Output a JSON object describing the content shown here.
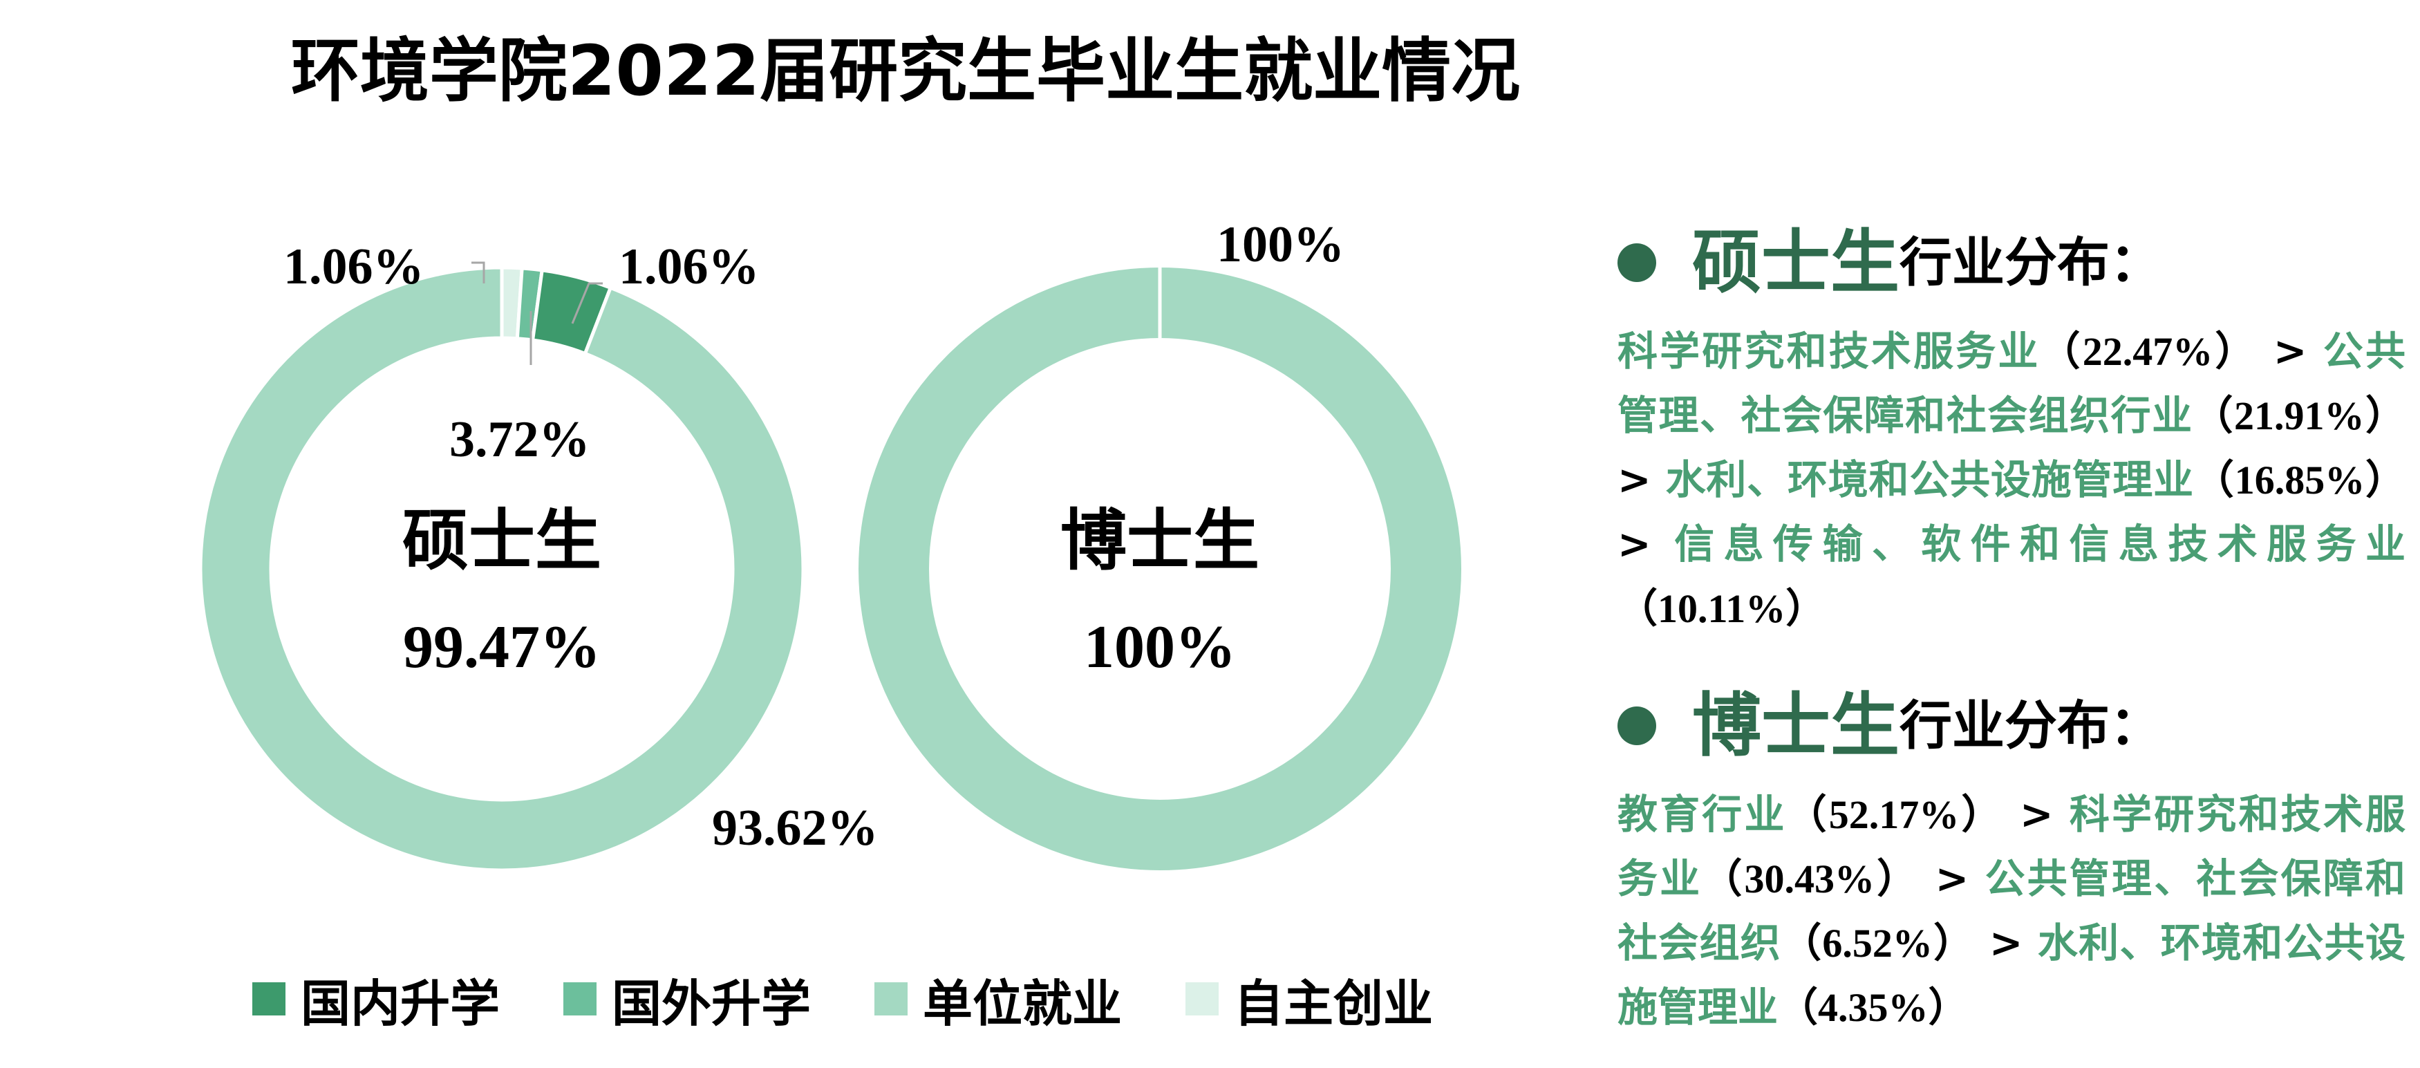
{
  "title": "环境学院2022届研究生毕业生就业情况",
  "colors": {
    "domestic_study": "#3d9a6c",
    "overseas_study": "#6cbf9c",
    "employment": "#a4d9c2",
    "self_employment": "#dcf1e8",
    "heading_green": "#2f6b4d",
    "text_green": "#4a9e74"
  },
  "chart_data": [
    {
      "type": "pie",
      "variant": "donut",
      "center_title": "硕士生",
      "center_value": "99.47%",
      "categories": [
        "国内升学",
        "国外升学",
        "单位就业",
        "自主创业"
      ],
      "values": [
        3.72,
        1.06,
        93.62,
        1.06
      ],
      "labels": [
        "3.72%",
        "1.06%",
        "93.62%",
        "1.06%"
      ]
    },
    {
      "type": "pie",
      "variant": "donut",
      "center_title": "博士生",
      "center_value": "100%",
      "categories": [
        "国内升学",
        "国外升学",
        "单位就业",
        "自主创业"
      ],
      "values": [
        0,
        0,
        100,
        0
      ],
      "labels": [
        "",
        "",
        "100%",
        ""
      ]
    }
  ],
  "legend": [
    {
      "label": "国内升学",
      "color": "#3d9a6c"
    },
    {
      "label": "国外升学",
      "color": "#6cbf9c"
    },
    {
      "label": "单位就业",
      "color": "#a4d9c2"
    },
    {
      "label": "自主创业",
      "color": "#dcf1e8"
    }
  ],
  "industry": {
    "masters": {
      "heading": "硕士生",
      "heading_suffix": "行业分布：",
      "items": [
        {
          "name": "科学研究和技术服务业",
          "pct": "（22.47%）"
        },
        {
          "name": "公共管理、社会保障和社会组织行业",
          "pct": "（21.91%）"
        },
        {
          "name": "水利、环境和公共设施管理业",
          "pct": "（16.85%）"
        },
        {
          "name": "信息传输、软件和信息技术服务业",
          "pct": "（10.11%）"
        }
      ]
    },
    "phd": {
      "heading": "博士生",
      "heading_suffix": "行业分布：",
      "items": [
        {
          "name": "教育行业",
          "pct": "（52.17%）"
        },
        {
          "name": "科学研究和技术服务业",
          "pct": "（30.43%）"
        },
        {
          "name": "公共管理、社会保障和社会组织",
          "pct": "（6.52%）"
        },
        {
          "name": "水利、环境和公共设施管理业",
          "pct": "（4.35%）"
        }
      ]
    },
    "separator": " > "
  }
}
